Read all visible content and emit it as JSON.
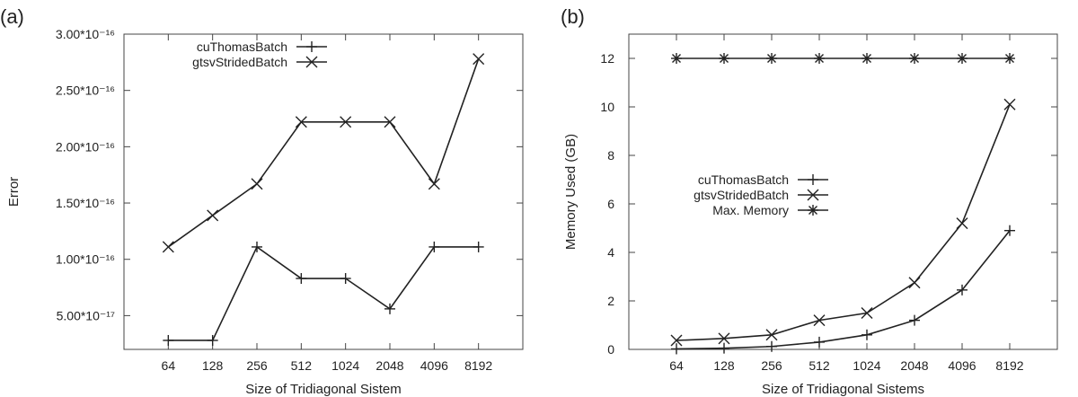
{
  "chart_data": [
    {
      "panel_label": "(a)",
      "type": "line",
      "xlabel": "Size of Tridiagonal Sistem",
      "ylabel": "Error",
      "categories": [
        "64",
        "128",
        "256",
        "512",
        "1024",
        "2048",
        "4096",
        "8192"
      ],
      "ylim": [
        2e-17,
        3e-16
      ],
      "yticks": [
        5e-17,
        1e-16,
        1.5e-16,
        2e-16,
        2.5e-16,
        3e-16
      ],
      "ytick_labels": [
        "5.00*10⁻¹⁷",
        "1.00*10⁻¹⁶",
        "1.50*10⁻¹⁶",
        "2.00*10⁻¹⁶",
        "2.50*10⁻¹⁶",
        "3.00*10⁻¹⁶"
      ],
      "legend_position": "top-left",
      "grid": false,
      "series": [
        {
          "name": "cuThomasBatch",
          "marker": "plus",
          "values": [
            2.8e-17,
            2.8e-17,
            1.11e-16,
            8.3e-17,
            8.3e-17,
            5.6e-17,
            1.11e-16,
            1.11e-16
          ]
        },
        {
          "name": "gtsvStridedBatch",
          "marker": "cross",
          "values": [
            1.11e-16,
            1.39e-16,
            1.67e-16,
            2.22e-16,
            2.22e-16,
            2.22e-16,
            1.67e-16,
            2.78e-16
          ]
        }
      ]
    },
    {
      "panel_label": "(b)",
      "type": "line",
      "xlabel": "Size of Tridiagonal Sistems",
      "ylabel": "Memory Used (GB)",
      "categories": [
        "64",
        "128",
        "256",
        "512",
        "1024",
        "2048",
        "4096",
        "8192"
      ],
      "ylim": [
        0,
        13
      ],
      "yticks": [
        0,
        2,
        4,
        6,
        8,
        10,
        12
      ],
      "ytick_labels": [
        "0",
        "2",
        "4",
        "6",
        "8",
        "10",
        "12"
      ],
      "legend_position": "center-left",
      "grid": false,
      "series": [
        {
          "name": "cuThomasBatch",
          "marker": "plus",
          "values": [
            0.02,
            0.05,
            0.12,
            0.3,
            0.6,
            1.2,
            2.45,
            4.9
          ]
        },
        {
          "name": "gtsvStridedBatch",
          "marker": "cross",
          "values": [
            0.37,
            0.45,
            0.6,
            1.2,
            1.5,
            2.75,
            5.2,
            10.1
          ]
        },
        {
          "name": "Max. Memory",
          "marker": "star",
          "values": [
            12,
            12,
            12,
            12,
            12,
            12,
            12,
            12
          ]
        }
      ]
    }
  ]
}
